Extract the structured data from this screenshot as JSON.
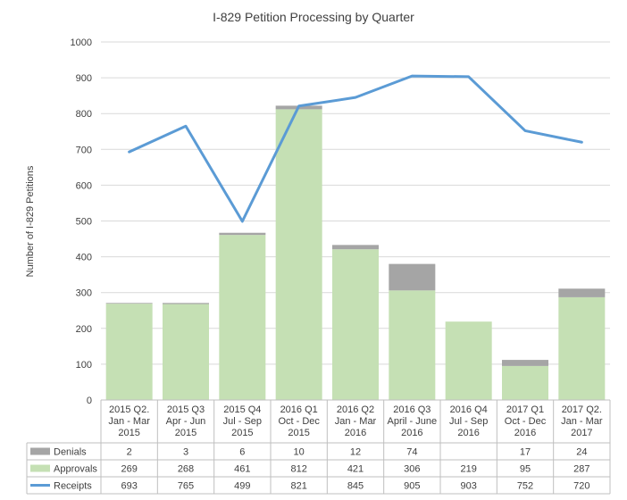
{
  "chart_data": {
    "type": "bar",
    "title": "I-829 Petition Processing by Quarter",
    "xlabel": "",
    "ylabel": "Number of I-829 Petitions",
    "ylim": [
      0,
      1000
    ],
    "yticks": [
      0,
      100,
      200,
      300,
      400,
      500,
      600,
      700,
      800,
      900,
      1000
    ],
    "grid": true,
    "categories": [
      [
        "2015 Q2.",
        "Jan - Mar",
        "2015"
      ],
      [
        "2015 Q3",
        "Apr - Jun",
        "2015"
      ],
      [
        "2015 Q4",
        "Jul - Sep",
        "2015"
      ],
      [
        "2016 Q1",
        "Oct - Dec",
        "2015"
      ],
      [
        "2016 Q2",
        "Jan - Mar",
        "2016"
      ],
      [
        "2016 Q3",
        "April - June",
        "2016"
      ],
      [
        "2016 Q4",
        "Jul - Sep",
        "2016"
      ],
      [
        "2017 Q1",
        "Oct - Dec",
        "2016"
      ],
      [
        "2017 Q2.",
        "Jan - Mar",
        "2017"
      ]
    ],
    "series": [
      {
        "name": "Denials",
        "kind": "stacked-bar",
        "color": "#a5a5a5",
        "values": [
          2,
          3,
          6,
          10,
          12,
          74,
          null,
          17,
          24
        ]
      },
      {
        "name": "Approvals",
        "kind": "stacked-bar",
        "color": "#c5e0b4",
        "values": [
          269,
          268,
          461,
          812,
          421,
          306,
          219,
          95,
          287
        ]
      },
      {
        "name": "Receipts",
        "kind": "line",
        "color": "#5b9bd5",
        "values": [
          693,
          765,
          499,
          821,
          845,
          905,
          903,
          752,
          720
        ]
      }
    ]
  }
}
